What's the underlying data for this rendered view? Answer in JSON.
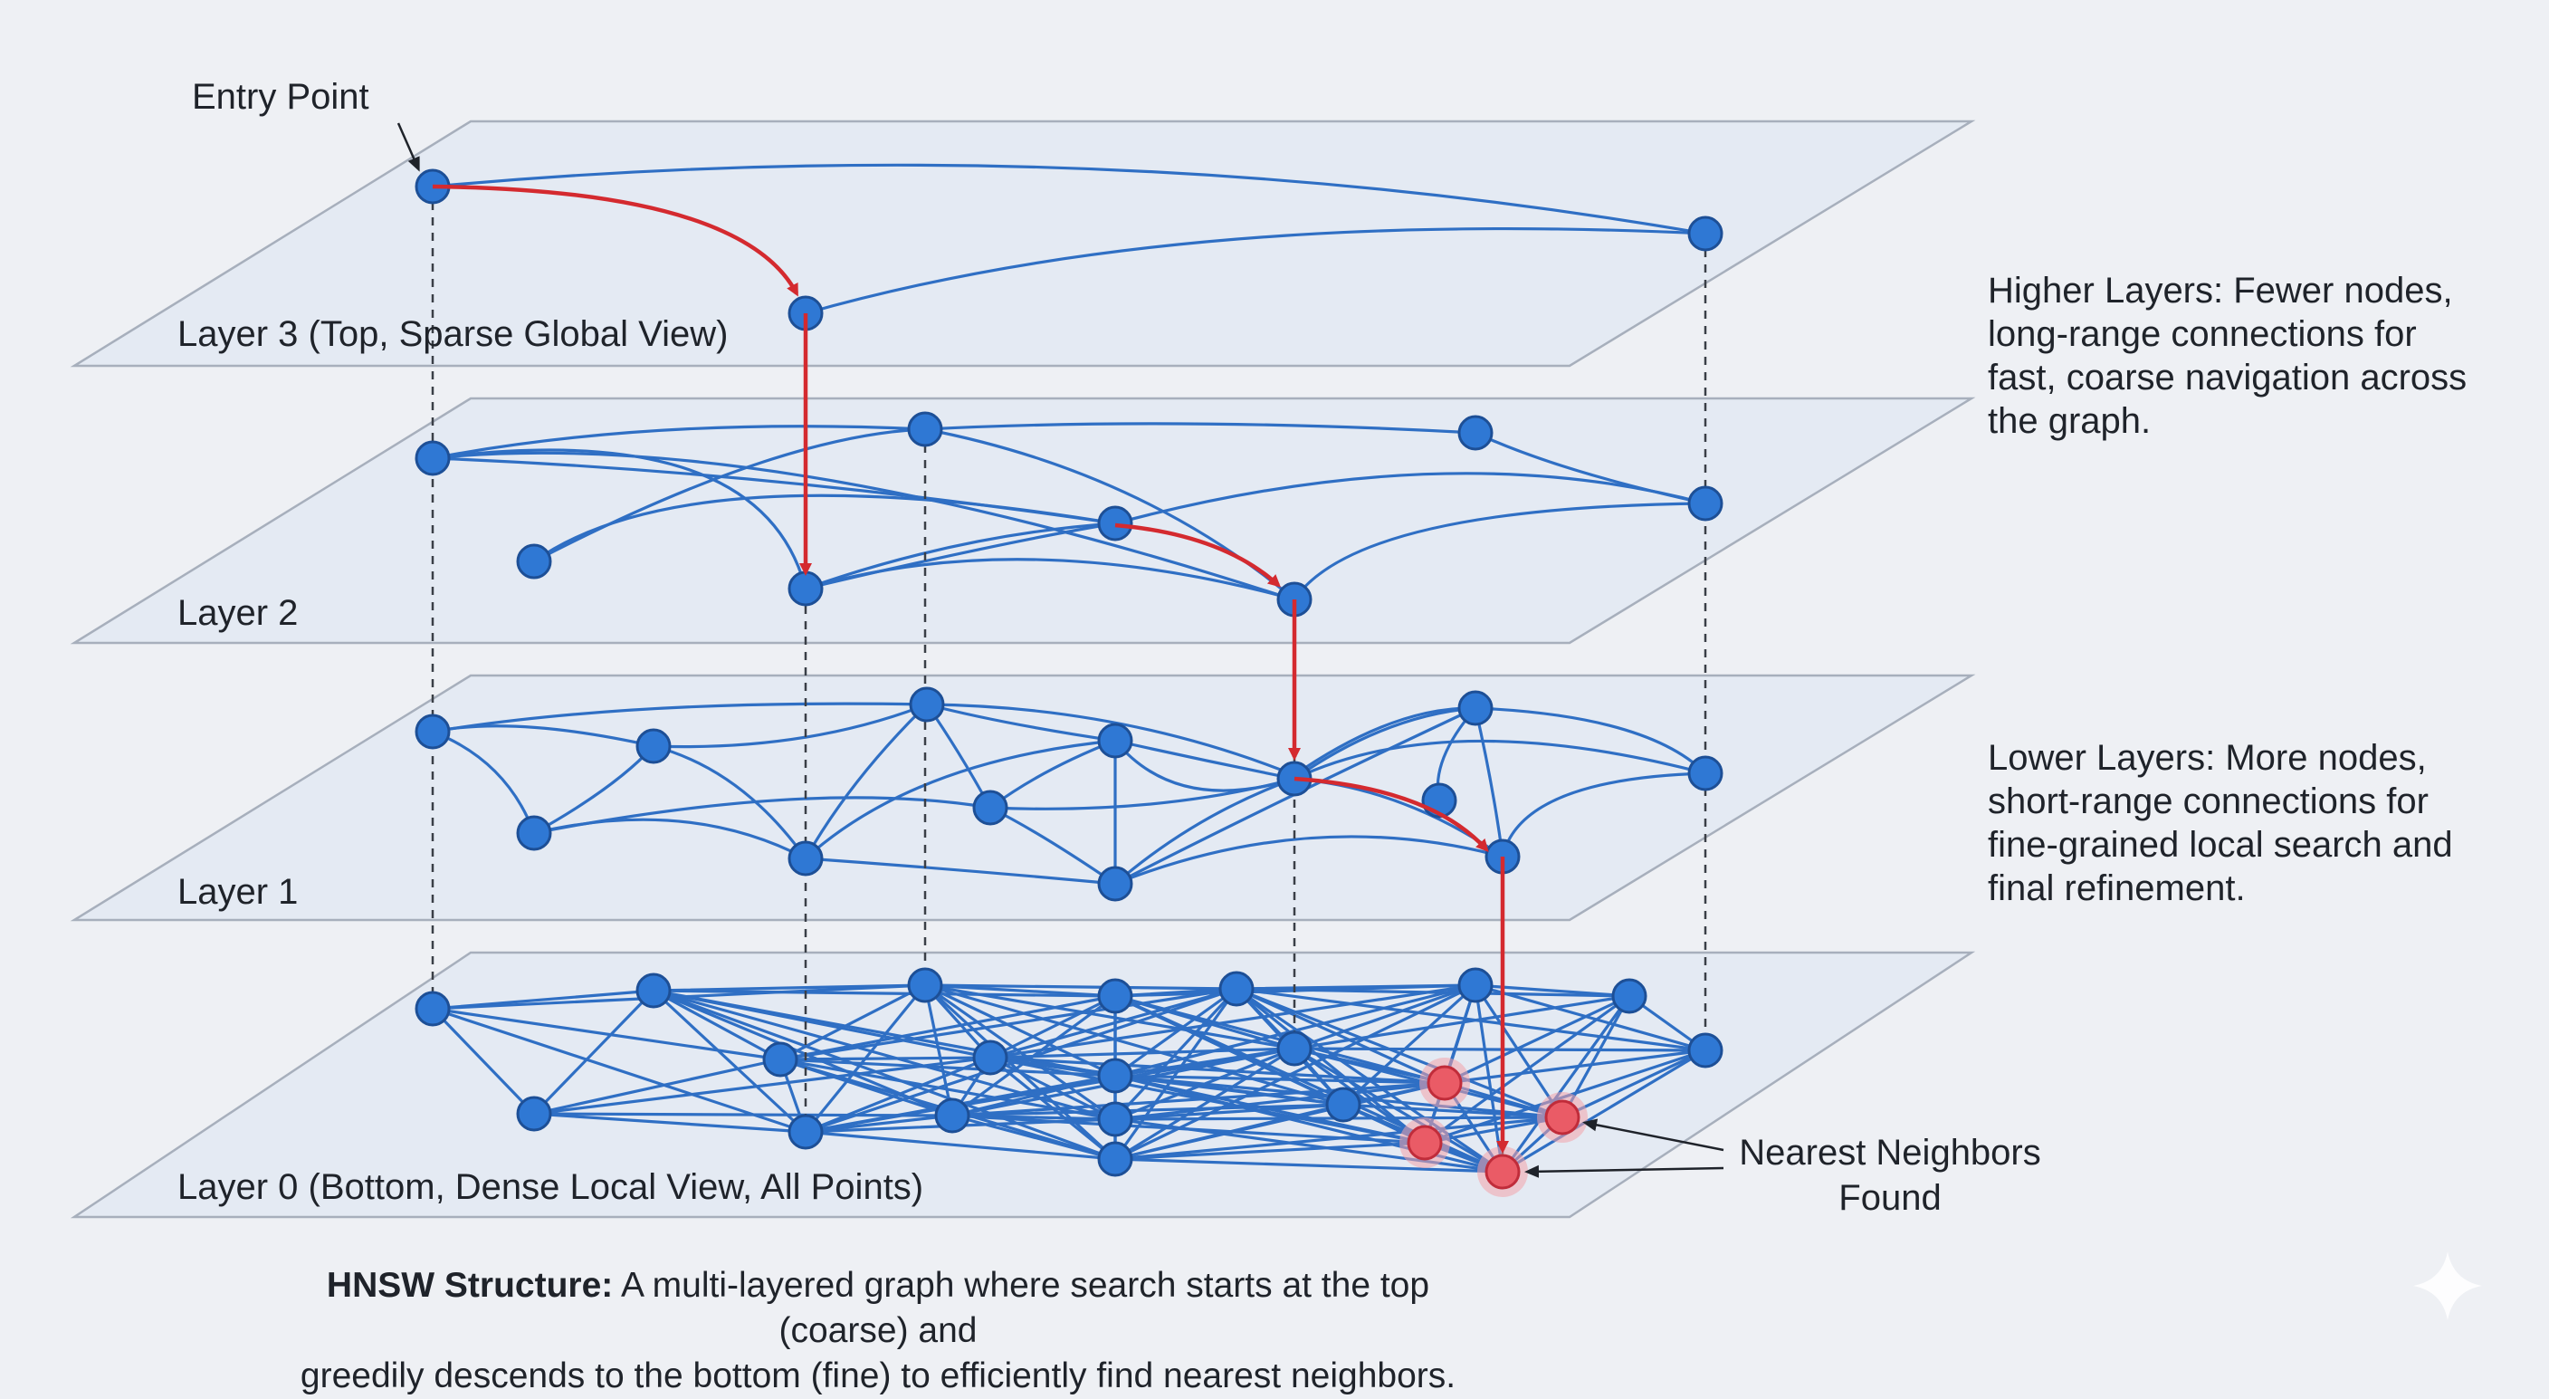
{
  "diagram": {
    "layers": [
      {
        "id": "L3",
        "label": "Layer 3 (Top, Sparse Global View)"
      },
      {
        "id": "L2",
        "label": "Layer 2"
      },
      {
        "id": "L1",
        "label": "Layer 1"
      },
      {
        "id": "L0",
        "label": "Layer 0 (Bottom, Dense Local View, All Points)"
      }
    ],
    "entry_point_label": "Entry Point",
    "nearest_neighbors_label": [
      "Nearest Neighbors",
      "Found"
    ],
    "higher_layers_note": [
      "Higher Layers: Fewer nodes,",
      "long-range connections for",
      "fast, coarse navigation across",
      "the graph."
    ],
    "lower_layers_note": [
      "Lower Layers: More nodes,",
      "short-range connections for",
      "fine-grained local search and",
      "final refinement."
    ],
    "caption": {
      "bold": "HNSW Structure:",
      "line1": " A multi-layered graph where search starts at the top (coarse) and",
      "line2": "greedily descends to the bottom (fine) to efficiently find nearest neighbors."
    },
    "colors": {
      "node": "#2f78d4",
      "edge": "#2f6fc4",
      "search_path": "#d42a2f",
      "nearest_neighbor": "#ea5b66",
      "plane": "#e4eaf3"
    }
  }
}
